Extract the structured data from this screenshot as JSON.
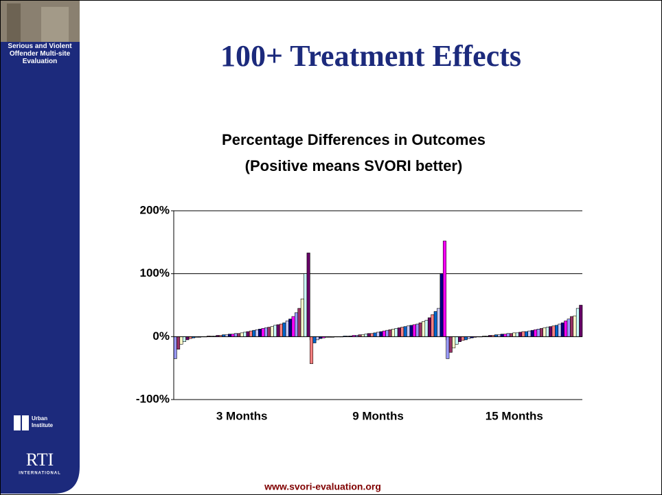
{
  "sidebar": {
    "title": "Serious and Violent Offender Multi-site Evaluation",
    "logo1": "Urban Institute",
    "logo2": "RTI",
    "logo2_sub": "INTERNATIONAL"
  },
  "slide_title": "100+ Treatment Effects",
  "footer": "www.svori-evaluation.org",
  "chart_data": {
    "type": "grouped-bar",
    "title": [
      "Percentage Differences in Outcomes",
      "(Positive means SVORI better)"
    ],
    "groups": [
      {
        "name": "3 Months",
        "values": [
          -35,
          -20,
          -12,
          -8,
          -5,
          -3,
          -2,
          -1,
          -1,
          0,
          0,
          1,
          1,
          1,
          2,
          2,
          3,
          3,
          4,
          4,
          5,
          5,
          6,
          7,
          8,
          9,
          10,
          11,
          12,
          13,
          14,
          15,
          16,
          18,
          19,
          20,
          22,
          25,
          28,
          32,
          38,
          45,
          60,
          100,
          133
        ]
      },
      {
        "name": "9 Months",
        "values": [
          -43,
          -10,
          -5,
          -3,
          -2,
          -1,
          -1,
          -1,
          0,
          0,
          0,
          1,
          1,
          1,
          2,
          2,
          3,
          3,
          4,
          5,
          5,
          6,
          7,
          8,
          9,
          10,
          11,
          12,
          13,
          14,
          15,
          16,
          17,
          18,
          19,
          20,
          22,
          24,
          26,
          30,
          35,
          40,
          45,
          100,
          152
        ]
      },
      {
        "name": "15 Months",
        "values": [
          -35,
          -25,
          -18,
          -12,
          -8,
          -6,
          -5,
          -3,
          -2,
          -1,
          0,
          0,
          1,
          1,
          2,
          2,
          3,
          3,
          4,
          4,
          5,
          5,
          6,
          6,
          7,
          8,
          8,
          9,
          10,
          11,
          12,
          13,
          14,
          15,
          16,
          17,
          18,
          20,
          22,
          25,
          28,
          32,
          33,
          45,
          50
        ]
      }
    ],
    "colors": [
      "#9999ff",
      "#993366",
      "#ffffcc",
      "#ccffff",
      "#660066",
      "#ff8080",
      "#0066cc",
      "#ccccff",
      "#000080",
      "#ff00ff"
    ],
    "ylim": [
      -100,
      200
    ],
    "yticks": [
      {
        "value": -100,
        "label": "-100%"
      },
      {
        "value": 0,
        "label": "0%"
      },
      {
        "value": 100,
        "label": "100%"
      },
      {
        "value": 200,
        "label": "200%"
      }
    ],
    "grid": true
  }
}
